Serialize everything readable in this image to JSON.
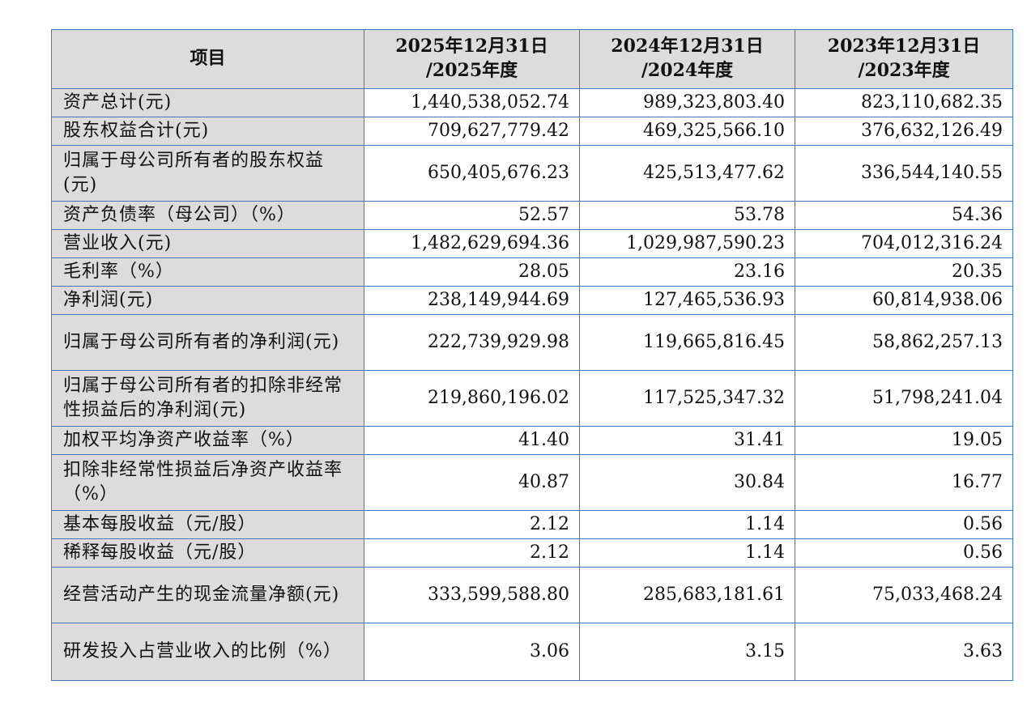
{
  "table": {
    "header": {
      "item": "项目",
      "col1": [
        "2025年12月31日",
        "/2025年度"
      ],
      "col2": [
        "2024年12月31日",
        "/2024年度"
      ],
      "col3": [
        "2023年12月31日",
        "/2023年度"
      ]
    },
    "rows": [
      {
        "label": "资产总计(元)",
        "v2025": "1,440,538,052.74",
        "v2024": "989,323,803.40",
        "v2023": "823,110,682.35"
      },
      {
        "label": "股东权益合计(元)",
        "v2025": "709,627,779.42",
        "v2024": "469,325,566.10",
        "v2023": "376,632,126.49"
      },
      {
        "label": "归属于母公司所有者的股东权益(元)",
        "v2025": "650,405,676.23",
        "v2024": "425,513,477.62",
        "v2023": "336,544,140.55"
      },
      {
        "label": "资产负债率（母公司）（%）",
        "v2025": "52.57",
        "v2024": "53.78",
        "v2023": "54.36"
      },
      {
        "label": "营业收入(元)",
        "v2025": "1,482,629,694.36",
        "v2024": "1,029,987,590.23",
        "v2023": "704,012,316.24"
      },
      {
        "label": "毛利率（%）",
        "v2025": "28.05",
        "v2024": "23.16",
        "v2023": "20.35"
      },
      {
        "label": "净利润(元)",
        "v2025": "238,149,944.69",
        "v2024": "127,465,536.93",
        "v2023": "60,814,938.06"
      },
      {
        "label": "归属于母公司所有者的净利润(元)",
        "v2025": "222,739,929.98",
        "v2024": "119,665,816.45",
        "v2023": "58,862,257.13"
      },
      {
        "label": "归属于母公司所有者的扣除非经常性损益后的净利润(元)",
        "v2025": "219,860,196.02",
        "v2024": "117,525,347.32",
        "v2023": "51,798,241.04"
      },
      {
        "label": "加权平均净资产收益率（%）",
        "v2025": "41.40",
        "v2024": "31.41",
        "v2023": "19.05"
      },
      {
        "label": "扣除非经常性损益后净资产收益率（%）",
        "v2025": "40.87",
        "v2024": "30.84",
        "v2023": "16.77"
      },
      {
        "label": "基本每股收益（元/股）",
        "v2025": "2.12",
        "v2024": "1.14",
        "v2023": "0.56"
      },
      {
        "label": "稀释每股收益（元/股）",
        "v2025": "2.12",
        "v2024": "1.14",
        "v2023": "0.56"
      },
      {
        "label": "经营活动产生的现金流量净额(元)",
        "v2025": "333,599,588.80",
        "v2024": "285,683,181.61",
        "v2023": "75,033,468.24"
      },
      {
        "label": "研发投入占营业收入的比例（%）",
        "v2025": "3.06",
        "v2024": "3.15",
        "v2023": "3.63"
      }
    ]
  }
}
